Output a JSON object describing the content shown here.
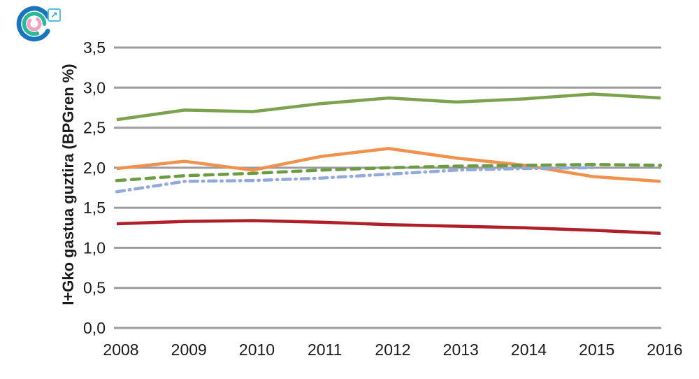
{
  "logo": {
    "external_link_icon": "↗",
    "arc_colors": {
      "outer": "#1b74be",
      "middle": "#2bb89b",
      "inner": "#f2a1c2"
    },
    "link_icon_color": "#54bee8"
  },
  "chart_data": {
    "type": "line",
    "title": "",
    "xlabel": "",
    "ylabel": "I+Gko gastua guztira (BPGren %)",
    "x": [
      2008,
      2009,
      2010,
      2011,
      2012,
      2013,
      2014,
      2015,
      2016
    ],
    "ylim": [
      0.0,
      3.5
    ],
    "yticks": [
      0.0,
      0.5,
      1.0,
      1.5,
      2.0,
      2.5,
      3.0,
      3.5
    ],
    "ytick_labels": [
      "0,0",
      "0,5",
      "1,0",
      "1,5",
      "2,0",
      "2,5",
      "3,0",
      "3,5"
    ],
    "grid": "horizontal",
    "gridline_color": "#9c9c9c",
    "legend": "none",
    "series": [
      {
        "name": "dark-red-solid",
        "color": "#b01e28",
        "style": "solid",
        "values": [
          1.3,
          1.33,
          1.34,
          1.32,
          1.29,
          1.27,
          1.25,
          1.22,
          1.18
        ]
      },
      {
        "name": "orange-solid",
        "color": "#f0914e",
        "style": "solid",
        "values": [
          1.99,
          2.08,
          1.97,
          2.14,
          2.24,
          2.12,
          2.03,
          1.89,
          1.83
        ]
      },
      {
        "name": "blue-dash-dot",
        "color": "#92aadb",
        "style": "dash-dot",
        "values": [
          1.7,
          1.83,
          1.84,
          1.87,
          1.92,
          1.97,
          1.99,
          2.0,
          null
        ]
      },
      {
        "name": "green-dashed",
        "color": "#6b9c43",
        "style": "dashed",
        "values": [
          1.84,
          1.9,
          1.93,
          1.97,
          2.0,
          2.02,
          2.03,
          2.04,
          2.03
        ]
      },
      {
        "name": "green-solid",
        "color": "#7ca24f",
        "style": "solid",
        "values": [
          2.6,
          2.72,
          2.7,
          2.8,
          2.87,
          2.82,
          2.86,
          2.92,
          2.87
        ]
      }
    ]
  }
}
